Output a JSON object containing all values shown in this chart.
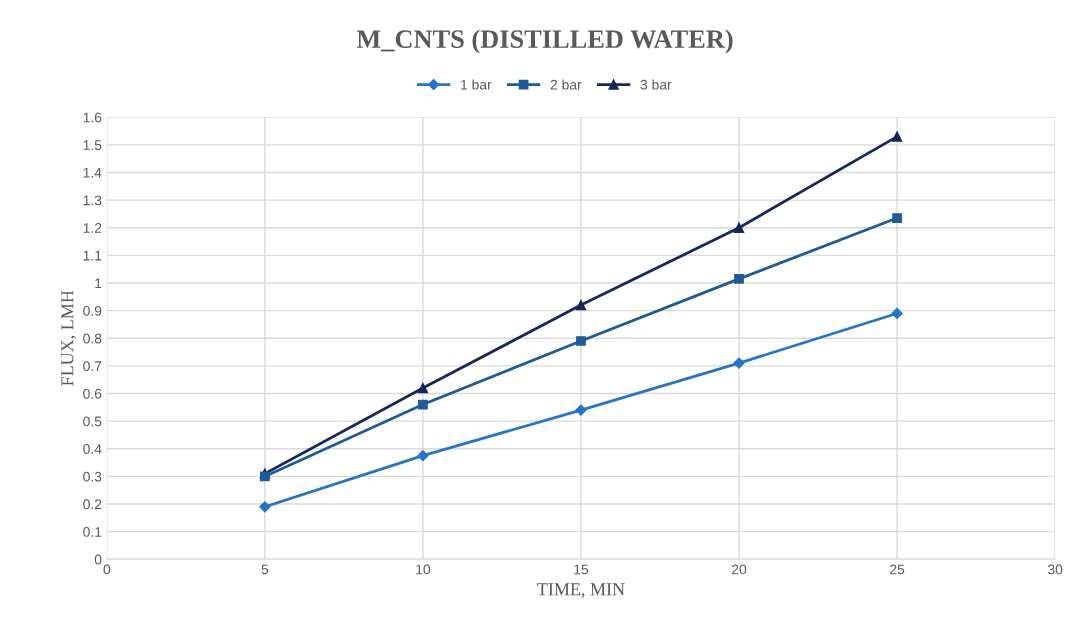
{
  "chart_data": {
    "type": "line",
    "title": "M_CNTS (DISTILLED WATER)",
    "xlabel": "TIME, MIN",
    "ylabel": "FLUX, LMH",
    "x": [
      5,
      10,
      15,
      20,
      25
    ],
    "series": [
      {
        "name": "1 bar",
        "color": "#2673c8",
        "marker": "diamond",
        "values": [
          0.19,
          0.375,
          0.54,
          0.71,
          0.89
        ]
      },
      {
        "name": "2 bar",
        "color": "#1d5a99",
        "marker": "square",
        "values": [
          0.3,
          0.56,
          0.79,
          1.015,
          1.235
        ]
      },
      {
        "name": "3 bar",
        "color": "#15275e",
        "marker": "triangle",
        "values": [
          0.31,
          0.62,
          0.92,
          1.2,
          1.53
        ]
      }
    ],
    "xlim": [
      0,
      30
    ],
    "xticks": [
      0,
      5,
      10,
      15,
      20,
      25,
      30
    ],
    "ylim": [
      0,
      1.6
    ],
    "yticks": [
      0,
      0.1,
      0.2,
      0.3,
      0.4,
      0.5,
      0.6,
      0.7,
      0.8,
      0.9,
      1,
      1.1,
      1.2,
      1.3,
      1.4,
      1.5,
      1.6
    ],
    "grid": true,
    "legend": "top",
    "line_style": "solid"
  }
}
